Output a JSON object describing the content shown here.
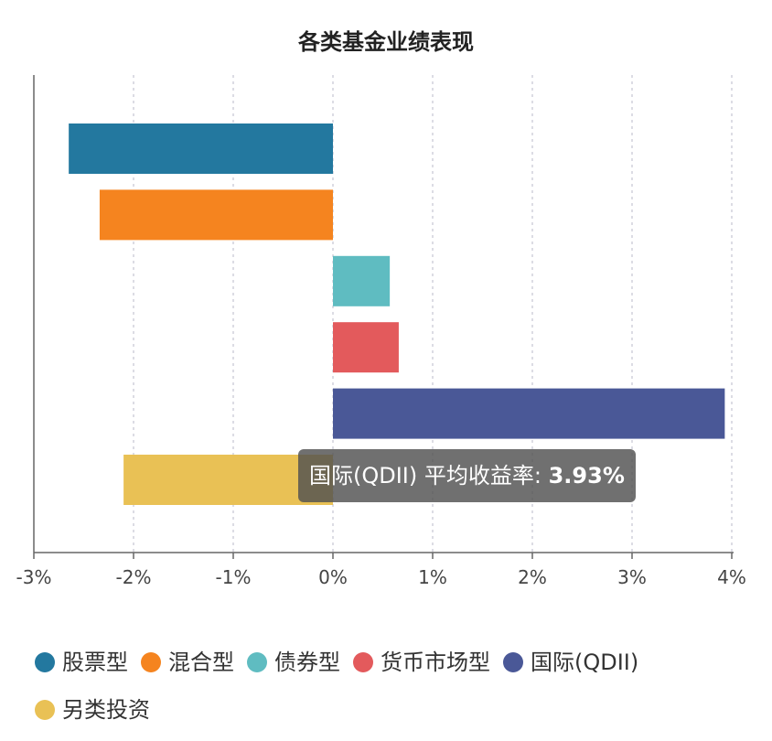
{
  "chart_data": {
    "type": "bar",
    "orientation": "horizontal",
    "title": "各类基金业绩表现",
    "categories": [
      "股票型",
      "混合型",
      "债券型",
      "货币市场型",
      "国际(QDII)",
      "另类投资"
    ],
    "values": [
      -2.65,
      -2.34,
      0.57,
      0.66,
      3.93,
      -2.1
    ],
    "colors": [
      "#23789f",
      "#f5841f",
      "#5fbcc1",
      "#e35a5c",
      "#4a5897",
      "#e9c155"
    ],
    "xlim": [
      -3,
      4
    ],
    "xticks": [
      "-3%",
      "-2%",
      "-1%",
      "0%",
      "1%",
      "2%",
      "3%",
      "4%"
    ],
    "grid": "vertical-dashed",
    "legend_placement": "bottom"
  },
  "tooltip": {
    "label": "国际(QDII) 平均收益率: ",
    "value": "3.93%"
  }
}
